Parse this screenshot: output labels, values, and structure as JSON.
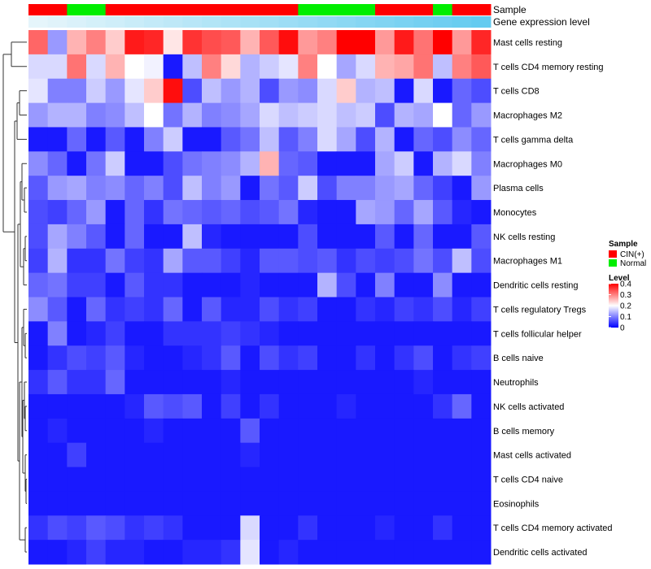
{
  "chart_data": {
    "type": "heatmap",
    "title": "",
    "annotation_rows": [
      "Sample",
      "Gene expression level"
    ],
    "rows": [
      "Mast cells resting",
      "T cells CD4 memory resting",
      "T cells CD8",
      "Macrophages M2",
      "T cells gamma delta",
      "Macrophages M0",
      "Plasma cells",
      "Monocytes",
      "NK cells resting",
      "Macrophages M1",
      "Dendritic cells resting",
      "T cells regulatory  Tregs",
      "T cells follicular helper",
      "B cells naive",
      "Neutrophils",
      "NK cells activated",
      "B cells memory",
      "Mast cells activated",
      "T cells CD4 naive",
      "Eosinophils",
      "T cells CD4 memory activated",
      "Dendritic cells activated"
    ],
    "sample_groups": [
      "CIN(+)",
      "CIN(+)",
      "Normal",
      "Normal",
      "CIN(+)",
      "CIN(+)",
      "CIN(+)",
      "CIN(+)",
      "CIN(+)",
      "CIN(+)",
      "CIN(+)",
      "CIN(+)",
      "CIN(+)",
      "CIN(+)",
      "Normal",
      "Normal",
      "Normal",
      "Normal",
      "CIN(+)",
      "CIN(+)",
      "CIN(+)",
      "Normal",
      "CIN(+)",
      "CIN(+)"
    ],
    "expression_level": [
      0.02,
      0.06,
      0.1,
      0.14,
      0.18,
      0.22,
      0.26,
      0.3,
      0.34,
      0.38,
      0.42,
      0.46,
      0.5,
      0.54,
      0.58,
      0.62,
      0.66,
      0.7,
      0.74,
      0.78,
      0.82,
      0.86,
      0.9,
      0.94
    ],
    "values": [
      [
        0.32,
        0.12,
        0.26,
        0.3,
        0.24,
        0.38,
        0.37,
        0.22,
        0.36,
        0.34,
        0.33,
        0.26,
        0.33,
        0.39,
        0.28,
        0.3,
        0.4,
        0.4,
        0.28,
        0.38,
        0.31,
        0.4,
        0.28,
        0.37
      ],
      [
        0.17,
        0.17,
        0.31,
        0.17,
        0.26,
        0.2,
        0.19,
        0.02,
        0.15,
        0.3,
        0.23,
        0.14,
        0.16,
        0.18,
        0.3,
        0.2,
        0.13,
        0.17,
        0.26,
        0.27,
        0.31,
        0.15,
        0.3,
        0.33
      ],
      [
        0.18,
        0.1,
        0.1,
        0.16,
        0.12,
        0.18,
        0.24,
        0.39,
        0.06,
        0.15,
        0.12,
        0.14,
        0.06,
        0.12,
        0.11,
        0.17,
        0.24,
        0.14,
        0.15,
        0.02,
        0.17,
        0.02,
        0.08,
        0.06
      ],
      [
        0.12,
        0.14,
        0.14,
        0.1,
        0.11,
        0.15,
        0.2,
        0.09,
        0.14,
        0.1,
        0.11,
        0.13,
        0.17,
        0.15,
        0.16,
        0.17,
        0.15,
        0.16,
        0.06,
        0.14,
        0.13,
        0.2,
        0.08,
        0.12
      ],
      [
        0.02,
        0.02,
        0.08,
        0.02,
        0.07,
        0.02,
        0.1,
        0.16,
        0.02,
        0.02,
        0.07,
        0.09,
        0.15,
        0.07,
        0.1,
        0.17,
        0.13,
        0.06,
        0.14,
        0.02,
        0.08,
        0.06,
        0.11,
        0.08
      ],
      [
        0.11,
        0.08,
        0.02,
        0.09,
        0.16,
        0.02,
        0.02,
        0.06,
        0.09,
        0.1,
        0.11,
        0.14,
        0.26,
        0.08,
        0.07,
        0.02,
        0.02,
        0.02,
        0.13,
        0.16,
        0.02,
        0.14,
        0.17,
        0.1
      ],
      [
        0.07,
        0.12,
        0.13,
        0.1,
        0.11,
        0.08,
        0.1,
        0.06,
        0.15,
        0.1,
        0.12,
        0.02,
        0.09,
        0.07,
        0.16,
        0.06,
        0.1,
        0.1,
        0.12,
        0.13,
        0.08,
        0.05,
        0.02,
        0.12
      ],
      [
        0.06,
        0.05,
        0.08,
        0.12,
        0.02,
        0.08,
        0.04,
        0.09,
        0.08,
        0.07,
        0.08,
        0.06,
        0.07,
        0.09,
        0.03,
        0.02,
        0.02,
        0.13,
        0.12,
        0.08,
        0.13,
        0.07,
        0.03,
        0.02
      ],
      [
        0.06,
        0.13,
        0.1,
        0.07,
        0.02,
        0.08,
        0.02,
        0.02,
        0.15,
        0.03,
        0.02,
        0.02,
        0.02,
        0.02,
        0.06,
        0.02,
        0.02,
        0.02,
        0.07,
        0.02,
        0.08,
        0.02,
        0.02,
        0.07
      ],
      [
        0.05,
        0.14,
        0.04,
        0.04,
        0.09,
        0.05,
        0.04,
        0.13,
        0.07,
        0.07,
        0.05,
        0.03,
        0.07,
        0.07,
        0.06,
        0.07,
        0.04,
        0.06,
        0.05,
        0.06,
        0.09,
        0.06,
        0.15,
        0.06
      ],
      [
        0.08,
        0.09,
        0.05,
        0.05,
        0.02,
        0.07,
        0.04,
        0.04,
        0.02,
        0.02,
        0.02,
        0.03,
        0.02,
        0.02,
        0.02,
        0.14,
        0.06,
        0.02,
        0.1,
        0.02,
        0.02,
        0.11,
        0.02,
        0.02
      ],
      [
        0.11,
        0.07,
        0.02,
        0.08,
        0.04,
        0.05,
        0.04,
        0.08,
        0.02,
        0.07,
        0.03,
        0.03,
        0.06,
        0.04,
        0.05,
        0.02,
        0.02,
        0.04,
        0.03,
        0.05,
        0.04,
        0.06,
        0.03,
        0.05
      ],
      [
        0.02,
        0.1,
        0.02,
        0.03,
        0.05,
        0.02,
        0.02,
        0.04,
        0.04,
        0.04,
        0.05,
        0.04,
        0.03,
        0.02,
        0.02,
        0.02,
        0.02,
        0.02,
        0.02,
        0.02,
        0.02,
        0.02,
        0.02,
        0.02
      ],
      [
        0.02,
        0.04,
        0.06,
        0.05,
        0.07,
        0.03,
        0.02,
        0.02,
        0.03,
        0.04,
        0.07,
        0.02,
        0.06,
        0.04,
        0.05,
        0.02,
        0.02,
        0.04,
        0.02,
        0.04,
        0.06,
        0.02,
        0.04,
        0.05
      ],
      [
        0.04,
        0.07,
        0.04,
        0.04,
        0.08,
        0.02,
        0.02,
        0.02,
        0.02,
        0.02,
        0.03,
        0.02,
        0.02,
        0.02,
        0.02,
        0.02,
        0.02,
        0.02,
        0.02,
        0.02,
        0.03,
        0.02,
        0.02,
        0.02
      ],
      [
        0.02,
        0.02,
        0.02,
        0.02,
        0.02,
        0.03,
        0.07,
        0.06,
        0.07,
        0.02,
        0.05,
        0.02,
        0.04,
        0.02,
        0.02,
        0.02,
        0.03,
        0.02,
        0.02,
        0.02,
        0.02,
        0.04,
        0.08,
        0.02
      ],
      [
        0.02,
        0.03,
        0.02,
        0.02,
        0.02,
        0.02,
        0.03,
        0.02,
        0.02,
        0.02,
        0.02,
        0.07,
        0.02,
        0.02,
        0.02,
        0.02,
        0.02,
        0.02,
        0.02,
        0.02,
        0.02,
        0.02,
        0.02,
        0.02
      ],
      [
        0.02,
        0.02,
        0.05,
        0.02,
        0.02,
        0.02,
        0.02,
        0.02,
        0.02,
        0.02,
        0.02,
        0.03,
        0.02,
        0.02,
        0.02,
        0.02,
        0.02,
        0.02,
        0.02,
        0.02,
        0.02,
        0.02,
        0.02,
        0.02
      ],
      [
        0.02,
        0.02,
        0.02,
        0.02,
        0.02,
        0.02,
        0.02,
        0.02,
        0.02,
        0.02,
        0.02,
        0.02,
        0.02,
        0.02,
        0.02,
        0.02,
        0.02,
        0.02,
        0.02,
        0.02,
        0.02,
        0.02,
        0.02,
        0.02
      ],
      [
        0.02,
        0.02,
        0.02,
        0.02,
        0.02,
        0.02,
        0.02,
        0.02,
        0.02,
        0.02,
        0.02,
        0.02,
        0.02,
        0.02,
        0.02,
        0.02,
        0.02,
        0.02,
        0.02,
        0.02,
        0.02,
        0.02,
        0.02,
        0.02
      ],
      [
        0.04,
        0.06,
        0.05,
        0.07,
        0.06,
        0.04,
        0.05,
        0.04,
        0.02,
        0.02,
        0.02,
        0.17,
        0.02,
        0.02,
        0.04,
        0.02,
        0.02,
        0.02,
        0.03,
        0.02,
        0.02,
        0.04,
        0.02,
        0.02
      ],
      [
        0.02,
        0.02,
        0.03,
        0.05,
        0.03,
        0.03,
        0.02,
        0.02,
        0.03,
        0.03,
        0.04,
        0.18,
        0.02,
        0.03,
        0.02,
        0.02,
        0.02,
        0.02,
        0.02,
        0.02,
        0.02,
        0.02,
        0.02,
        0.02
      ]
    ],
    "legend_sample": {
      "title": "Sample",
      "items": [
        {
          "label": "CIN(+)",
          "color": "#ff0000"
        },
        {
          "label": "Normal",
          "color": "#00ee00"
        }
      ]
    },
    "legend_level": {
      "title": "Level",
      "ticks": [
        "0.4",
        "0.3",
        "0.2",
        "0.1",
        "0"
      ],
      "tick_values": [
        0.4,
        0.3,
        0.2,
        0.1,
        0
      ],
      "range": [
        0,
        0.4
      ]
    },
    "colors": {
      "low": "#0000ff",
      "mid": "#ffffff",
      "high": "#ff0000",
      "cin": "#ff0000",
      "normal": "#00ee00",
      "expr_low": "#e8f6fb",
      "expr_high": "#5bc8ef"
    }
  }
}
